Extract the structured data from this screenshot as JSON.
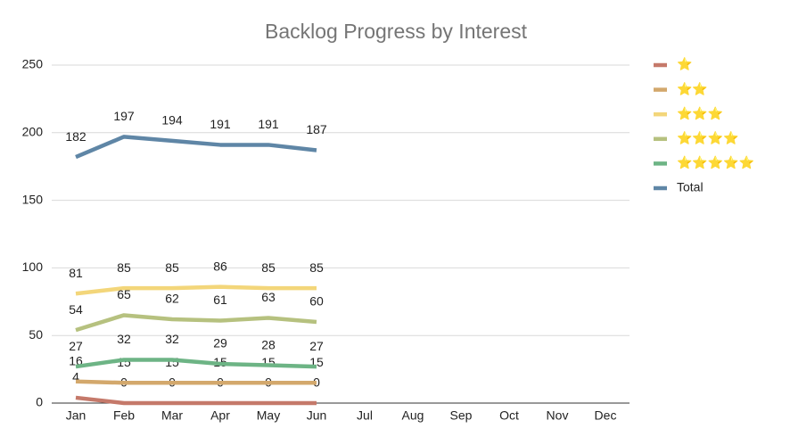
{
  "chart_data": {
    "type": "line",
    "title": "Backlog Progress by Interest",
    "categories": [
      "Jan",
      "Feb",
      "Mar",
      "Apr",
      "May",
      "Jun",
      "Jul",
      "Aug",
      "Sep",
      "Oct",
      "Nov",
      "Dec"
    ],
    "series": [
      {
        "name": "⭐",
        "color": "#c5796a",
        "values": [
          4,
          0,
          0,
          0,
          0,
          0,
          null,
          null,
          null,
          null,
          null,
          null
        ]
      },
      {
        "name": "⭐⭐",
        "color": "#d3a86c",
        "values": [
          16,
          15,
          15,
          15,
          15,
          15,
          null,
          null,
          null,
          null,
          null,
          null
        ]
      },
      {
        "name": "⭐⭐⭐",
        "color": "#f3d67a",
        "values": [
          81,
          85,
          85,
          86,
          85,
          85,
          null,
          null,
          null,
          null,
          null,
          null
        ]
      },
      {
        "name": "⭐⭐⭐⭐",
        "color": "#b6c17f",
        "values": [
          54,
          65,
          62,
          61,
          63,
          60,
          null,
          null,
          null,
          null,
          null,
          null
        ]
      },
      {
        "name": "⭐⭐⭐⭐⭐",
        "color": "#6db485",
        "values": [
          27,
          32,
          32,
          29,
          28,
          27,
          null,
          null,
          null,
          null,
          null,
          null
        ]
      },
      {
        "name": "Total",
        "color": "#5f86a6",
        "values": [
          182,
          197,
          194,
          191,
          191,
          187,
          null,
          null,
          null,
          null,
          null,
          null
        ]
      }
    ],
    "ylim": [
      0,
      250
    ],
    "yticks": [
      0,
      50,
      100,
      150,
      200,
      250
    ],
    "grid": true,
    "legend": "right"
  }
}
